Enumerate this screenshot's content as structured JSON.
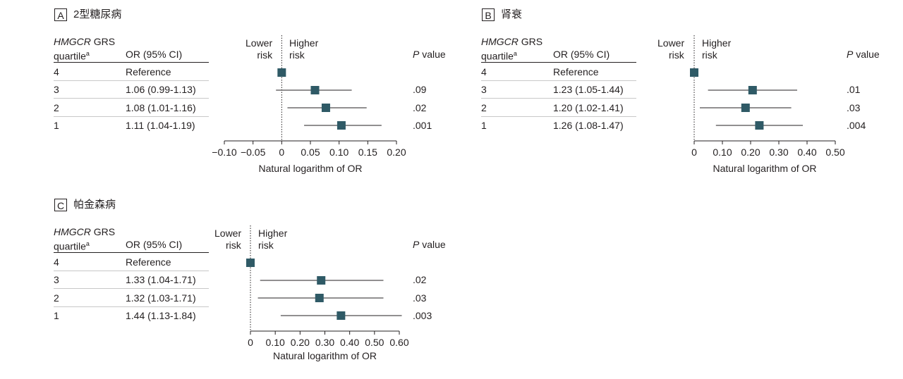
{
  "panels": [
    {
      "letter": "A",
      "title": "2型糖尿病",
      "header": {
        "quartile_italic": "HMGCR",
        "quartile_rest": " GRS",
        "quartile_line2": "quartile",
        "quartile_sup": "a",
        "or_label": "OR (95% CI)",
        "lower_risk": [
          "Lower",
          "risk"
        ],
        "higher_risk": [
          "Higher",
          "risk"
        ],
        "p_italic": "P",
        "p_rest": " value"
      },
      "rows": [
        {
          "quartile": "4",
          "or": "Reference",
          "p": ""
        },
        {
          "quartile": "3",
          "or": "1.06 (0.99-1.13)",
          "p": ".09"
        },
        {
          "quartile": "2",
          "or": "1.08 (1.01-1.16)",
          "p": ".02"
        },
        {
          "quartile": "1",
          "or": "1.11 (1.04-1.19)",
          "p": ".001"
        }
      ],
      "xlabel": "Natural logarithm of OR"
    },
    {
      "letter": "B",
      "title": "肾衰",
      "header": {
        "quartile_italic": "HMGCR",
        "quartile_rest": " GRS",
        "quartile_line2": "quartile",
        "quartile_sup": "a",
        "or_label": "OR (95% CI)",
        "lower_risk": [
          "Lower",
          "risk"
        ],
        "higher_risk": [
          "Higher",
          "risk"
        ],
        "p_italic": "P",
        "p_rest": " value"
      },
      "rows": [
        {
          "quartile": "4",
          "or": "Reference",
          "p": ""
        },
        {
          "quartile": "3",
          "or": "1.23 (1.05-1.44)",
          "p": ".01"
        },
        {
          "quartile": "2",
          "or": "1.20 (1.02-1.41)",
          "p": ".03"
        },
        {
          "quartile": "1",
          "or": "1.26 (1.08-1.47)",
          "p": ".004"
        }
      ],
      "xlabel": "Natural logarithm of OR"
    },
    {
      "letter": "C",
      "title": "帕金森病",
      "header": {
        "quartile_italic": "HMGCR",
        "quartile_rest": " GRS",
        "quartile_line2": "quartile",
        "quartile_sup": "a",
        "or_label": "OR (95% CI)",
        "lower_risk": [
          "Lower",
          "risk"
        ],
        "higher_risk": [
          "Higher",
          "risk"
        ],
        "p_italic": "P",
        "p_rest": " value"
      },
      "rows": [
        {
          "quartile": "4",
          "or": "Reference",
          "p": ""
        },
        {
          "quartile": "3",
          "or": "1.33 (1.04-1.71)",
          "p": ".02"
        },
        {
          "quartile": "2",
          "or": "1.32 (1.03-1.71)",
          "p": ".03"
        },
        {
          "quartile": "1",
          "or": "1.44 (1.13-1.84)",
          "p": ".003"
        }
      ],
      "xlabel": "Natural logarithm of OR"
    }
  ],
  "chart_data": [
    {
      "type": "forest",
      "panel": "A",
      "title": "2型糖尿病",
      "xlabel": "Natural logarithm of OR",
      "xlim": [
        -0.1,
        0.2
      ],
      "ticks": [
        -0.1,
        -0.05,
        0,
        0.05,
        0.1,
        0.15,
        0.2
      ],
      "tick_labels": [
        "−0.10",
        "−0.05",
        "0",
        "0.05",
        "0.10",
        "0.15",
        "0.20"
      ],
      "points": [
        {
          "quartile": "4",
          "estimate": 0,
          "lower": 0,
          "upper": 0
        },
        {
          "quartile": "3",
          "estimate": 0.058,
          "lower": -0.01,
          "upper": 0.122
        },
        {
          "quartile": "2",
          "estimate": 0.077,
          "lower": 0.01,
          "upper": 0.148
        },
        {
          "quartile": "1",
          "estimate": 0.104,
          "lower": 0.039,
          "upper": 0.174
        }
      ]
    },
    {
      "type": "forest",
      "panel": "B",
      "title": "肾衰",
      "xlabel": "Natural logarithm of OR",
      "xlim": [
        0,
        0.5
      ],
      "ticks": [
        0,
        0.1,
        0.2,
        0.3,
        0.4,
        0.5
      ],
      "tick_labels": [
        "0",
        "0.10",
        "0.20",
        "0.30",
        "0.40",
        "0.50"
      ],
      "points": [
        {
          "quartile": "4",
          "estimate": 0,
          "lower": 0,
          "upper": 0
        },
        {
          "quartile": "3",
          "estimate": 0.207,
          "lower": 0.049,
          "upper": 0.365
        },
        {
          "quartile": "2",
          "estimate": 0.182,
          "lower": 0.02,
          "upper": 0.344
        },
        {
          "quartile": "1",
          "estimate": 0.231,
          "lower": 0.077,
          "upper": 0.385
        }
      ]
    },
    {
      "type": "forest",
      "panel": "C",
      "title": "帕金森病",
      "xlabel": "Natural logarithm of OR",
      "xlim": [
        0,
        0.6
      ],
      "ticks": [
        0,
        0.1,
        0.2,
        0.3,
        0.4,
        0.5,
        0.6
      ],
      "tick_labels": [
        "0",
        "0.10",
        "0.20",
        "0.30",
        "0.40",
        "0.50",
        "0.60"
      ],
      "points": [
        {
          "quartile": "4",
          "estimate": 0,
          "lower": 0,
          "upper": 0
        },
        {
          "quartile": "3",
          "estimate": 0.285,
          "lower": 0.039,
          "upper": 0.536
        },
        {
          "quartile": "2",
          "estimate": 0.278,
          "lower": 0.03,
          "upper": 0.536
        },
        {
          "quartile": "1",
          "estimate": 0.365,
          "lower": 0.122,
          "upper": 0.61
        }
      ]
    }
  ],
  "colors": {
    "marker": "#2f5a66",
    "text": "#231f20",
    "rule": "#231f20",
    "row_rule": "#c8c8c8"
  }
}
